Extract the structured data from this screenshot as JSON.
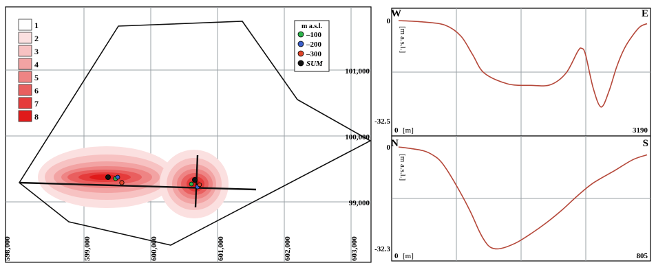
{
  "map": {
    "legend_classes": [
      "1",
      "2",
      "3",
      "4",
      "5",
      "6",
      "7",
      "8"
    ],
    "legend_colors": [
      "#ffffff",
      "#fbe0e0",
      "#f7c2c2",
      "#f2a3a3",
      "#ee8484",
      "#e95f5f",
      "#e53b3b",
      "#e01a1a"
    ],
    "legend_box_title": "m a.s.l.",
    "symbols": [
      {
        "label": "–100",
        "color": "#2db34a"
      },
      {
        "label": "–200",
        "color": "#3b5fc9"
      },
      {
        "label": "–300",
        "color": "#e0452a"
      },
      {
        "label": "SUM",
        "color": "#111111"
      }
    ],
    "easting_ticks": [
      "598,000",
      "599,000",
      "600,000",
      "601,000",
      "602,000",
      "603,000"
    ],
    "northing_ticks": [
      "101,000",
      "100,000",
      "99,000"
    ]
  },
  "chart_data": [
    {
      "type": "line",
      "title": "",
      "corner_left": "W",
      "corner_right": "E",
      "xlabel": "[m]",
      "ylabel": "[m a.s.l.]",
      "xlim": [
        0,
        3190
      ],
      "ylim": [
        -32.5,
        0
      ],
      "x_tick_labels": [
        "0",
        "3190"
      ],
      "y_tick_labels": [
        "0",
        "-32.5"
      ],
      "color": "#b5483a",
      "series": [
        {
          "x": [
            0,
            300,
            600,
            800,
            950,
            1100,
            1400,
            1700,
            1950,
            2150,
            2300,
            2350,
            2400,
            2500,
            2600,
            2700,
            2800,
            2900,
            3000,
            3100,
            3190
          ],
          "values": [
            0,
            -0.4,
            -1.5,
            -5,
            -11,
            -17,
            -20.5,
            -21,
            -20.8,
            -17,
            -10,
            -9,
            -11,
            -22,
            -28,
            -23,
            -15,
            -9,
            -5,
            -2,
            -1
          ]
        }
      ]
    },
    {
      "type": "line",
      "title": "",
      "corner_left": "N",
      "corner_right": "S",
      "xlabel": "[m]",
      "ylabel": "[m a.s.l.]",
      "xlim": [
        0,
        805
      ],
      "ylim": [
        -32.3,
        0
      ],
      "x_tick_labels": [
        "0",
        "805"
      ],
      "y_tick_labels": [
        "0",
        "-32.3"
      ],
      "color": "#b5483a",
      "series": [
        {
          "x": [
            0,
            40,
            80,
            110,
            140,
            180,
            230,
            260,
            280,
            300,
            330,
            380,
            430,
            480,
            530,
            580,
            630,
            700,
            760,
            805
          ],
          "values": [
            0,
            -0.5,
            -1.2,
            -2.5,
            -5,
            -11,
            -20,
            -26.5,
            -30,
            -32,
            -32.3,
            -30.5,
            -27.5,
            -24,
            -20,
            -15.5,
            -11.5,
            -7.5,
            -4,
            -2.5
          ]
        }
      ]
    }
  ]
}
